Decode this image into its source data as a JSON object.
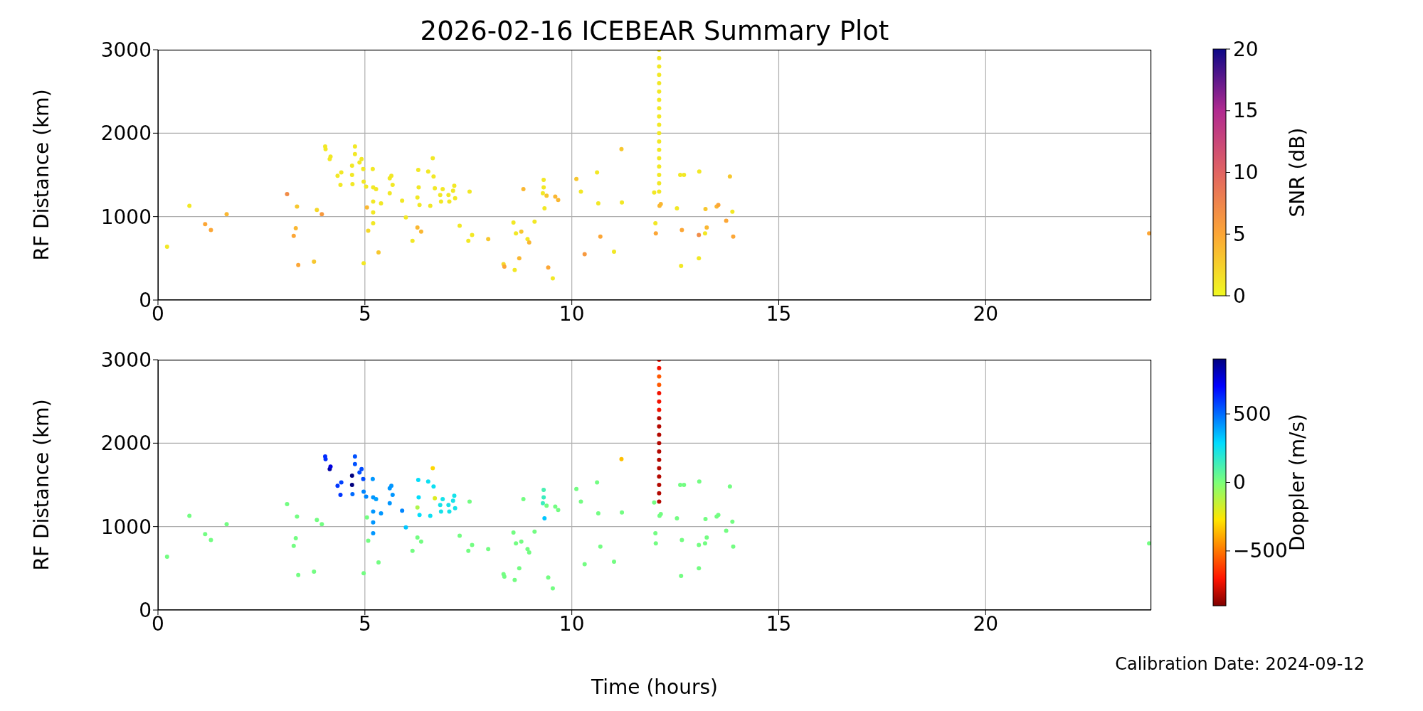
{
  "chart_data": [
    {
      "type": "scatter",
      "title": "2026-02-16 ICEBEAR Summary Plot",
      "ylabel": "RF Distance (km)",
      "clabel": "SNR (dB)",
      "clim": [
        0,
        20
      ],
      "cticks": [
        0,
        5,
        10,
        15,
        20
      ],
      "xlim": [
        0,
        24
      ],
      "xticks": [
        0,
        5,
        10,
        15,
        20
      ],
      "ylim": [
        0,
        3000
      ],
      "yticks": [
        0,
        1000,
        2000,
        3000
      ],
      "grid": true,
      "marker": "circle",
      "x": [
        0.22,
        0.76,
        1.14,
        1.28,
        1.66,
        3.12,
        3.36,
        3.33,
        3.28,
        3.39,
        3.77,
        3.84,
        3.96,
        4.04,
        4.05,
        4.15,
        4.17,
        4.34,
        4.41,
        4.43,
        4.69,
        4.69,
        4.7,
        4.76,
        4.76,
        4.87,
        4.92,
        4.96,
        4.97,
        5.03,
        5.05,
        5.08,
        4.97,
        5.19,
        5.2,
        5.2,
        5.2,
        5.2,
        5.27,
        5.33,
        5.39,
        5.6,
        5.64,
        5.67,
        5.6,
        5.9,
        5.99,
        6.15,
        6.27,
        6.36,
        6.29,
        6.27,
        6.3,
        6.32,
        6.53,
        6.58,
        6.64,
        6.66,
        6.69,
        6.82,
        6.84,
        6.88,
        7.02,
        7.04,
        7.13,
        7.16,
        7.18,
        7.29,
        7.53,
        7.5,
        7.59,
        7.98,
        8.35,
        8.37,
        8.59,
        8.62,
        8.65,
        8.73,
        8.78,
        8.83,
        8.93,
        8.97,
        9.1,
        9.32,
        9.32,
        9.3,
        9.34,
        9.39,
        9.43,
        9.54,
        9.6,
        9.67,
        10.11,
        10.22,
        10.31,
        10.61,
        10.64,
        10.69,
        11.02,
        11.2,
        11.21,
        12.11,
        12.11,
        12.11,
        12.11,
        12.11,
        12.11,
        12.11,
        12.11,
        12.11,
        12.11,
        12.11,
        12.11,
        12.11,
        12.11,
        12.11,
        12.11,
        12.11,
        12.11,
        11.99,
        12.02,
        12.03,
        12.12,
        12.15,
        12.54,
        12.62,
        12.71,
        12.64,
        12.66,
        13.08,
        13.07,
        13.07,
        13.22,
        13.26,
        13.23,
        13.5,
        13.54,
        13.73,
        13.82,
        13.88,
        13.9,
        23.95
      ],
      "values": [
        640,
        1130,
        910,
        840,
        1030,
        1270,
        1120,
        860,
        770,
        420,
        460,
        1080,
        1030,
        1840,
        1810,
        1690,
        1720,
        1490,
        1380,
        1530,
        1610,
        1500,
        1390,
        1840,
        1750,
        1650,
        1690,
        1570,
        1420,
        1360,
        1110,
        830,
        440,
        1570,
        1350,
        1180,
        1050,
        920,
        1330,
        570,
        1160,
        1460,
        1490,
        1380,
        1280,
        1190,
        990,
        710,
        870,
        820,
        1560,
        1230,
        1350,
        1140,
        1540,
        1130,
        1700,
        1480,
        1340,
        1260,
        1180,
        1330,
        1260,
        1180,
        1310,
        1370,
        1220,
        890,
        1300,
        710,
        780,
        730,
        430,
        400,
        930,
        360,
        800,
        500,
        820,
        1330,
        730,
        690,
        940,
        1440,
        1350,
        1280,
        1100,
        1250,
        390,
        260,
        1240,
        1200,
        1450,
        1300,
        550,
        1530,
        1160,
        760,
        580,
        1810,
        1170,
        1300,
        1400,
        1500,
        1600,
        1700,
        1800,
        1900,
        2000,
        2100,
        2200,
        2300,
        2400,
        2500,
        2600,
        2700,
        2800,
        2900,
        3000,
        1290,
        920,
        800,
        1130,
        1150,
        1100,
        1500,
        1500,
        410,
        840,
        1540,
        500,
        780,
        800,
        870,
        1090,
        1120,
        1140,
        950,
        1480,
        1060,
        760,
        800
      ],
      "cvalues": [
        1,
        1,
        5,
        5,
        4,
        7,
        3,
        4,
        5,
        5,
        3,
        2,
        6,
        1,
        1,
        1,
        1,
        1,
        1,
        1,
        1,
        1,
        1,
        1,
        1,
        1,
        1,
        1,
        1,
        1,
        4,
        2,
        1,
        1,
        1,
        1,
        1,
        1,
        1,
        3,
        1,
        1,
        1,
        1,
        1,
        1,
        1,
        1,
        4,
        4,
        1,
        1,
        1,
        1,
        1,
        1,
        1,
        1,
        1,
        1,
        1,
        1,
        1,
        1,
        1,
        1,
        1,
        1,
        1,
        1,
        1,
        3,
        2,
        5,
        1,
        1,
        1,
        4,
        3,
        4,
        1,
        4,
        1,
        1,
        1,
        1,
        1,
        3,
        5,
        1,
        4,
        4,
        3,
        1,
        6,
        1,
        1,
        5,
        1,
        3,
        1,
        1,
        1,
        1,
        1,
        1,
        1,
        1,
        1,
        1,
        1,
        1,
        1,
        1,
        1,
        1,
        1,
        1,
        1,
        1,
        1,
        5,
        4,
        4,
        1,
        1,
        1,
        1,
        5,
        1,
        1,
        7,
        1,
        4,
        3,
        4,
        5,
        5,
        3,
        1,
        5,
        5
      ]
    },
    {
      "type": "scatter",
      "xlabel": "Time (hours)",
      "ylabel": "RF Distance (km)",
      "clabel": "Doppler (m/s)",
      "clim": [
        -900,
        900
      ],
      "cticks": [
        -500,
        0,
        500
      ],
      "xlim": [
        0,
        24
      ],
      "xticks": [
        0,
        5,
        10,
        15,
        20
      ],
      "ylim": [
        0,
        3000
      ],
      "yticks": [
        0,
        1000,
        2000,
        3000
      ],
      "grid": true,
      "marker": "circle",
      "annotations": [
        "Calibration Date: 2024-09-12"
      ],
      "x": [
        0.22,
        0.76,
        1.14,
        1.28,
        1.66,
        3.12,
        3.36,
        3.33,
        3.28,
        3.39,
        3.77,
        3.84,
        3.96,
        4.04,
        4.05,
        4.15,
        4.17,
        4.34,
        4.41,
        4.43,
        4.69,
        4.69,
        4.7,
        4.76,
        4.76,
        4.87,
        4.92,
        4.96,
        4.97,
        5.03,
        5.05,
        5.08,
        4.97,
        5.19,
        5.2,
        5.2,
        5.2,
        5.2,
        5.27,
        5.33,
        5.39,
        5.6,
        5.64,
        5.67,
        5.6,
        5.9,
        5.99,
        6.15,
        6.27,
        6.36,
        6.29,
        6.27,
        6.3,
        6.32,
        6.53,
        6.58,
        6.64,
        6.66,
        6.69,
        6.82,
        6.84,
        6.88,
        7.02,
        7.04,
        7.13,
        7.16,
        7.18,
        7.29,
        7.53,
        7.5,
        7.59,
        7.98,
        8.35,
        8.37,
        8.59,
        8.62,
        8.65,
        8.73,
        8.78,
        8.83,
        8.93,
        8.97,
        9.1,
        9.32,
        9.32,
        9.3,
        9.34,
        9.39,
        9.43,
        9.54,
        9.6,
        9.67,
        10.11,
        10.22,
        10.31,
        10.61,
        10.64,
        10.69,
        11.02,
        11.2,
        11.21,
        12.11,
        12.11,
        12.11,
        12.11,
        12.11,
        12.11,
        12.11,
        12.11,
        12.11,
        12.11,
        12.11,
        12.11,
        12.11,
        12.11,
        12.11,
        12.11,
        12.11,
        12.11,
        11.99,
        12.02,
        12.03,
        12.12,
        12.15,
        12.54,
        12.62,
        12.71,
        12.64,
        12.66,
        13.08,
        13.07,
        13.07,
        13.22,
        13.26,
        13.23,
        13.5,
        13.54,
        13.73,
        13.82,
        13.88,
        13.9,
        23.95
      ],
      "values": [
        640,
        1130,
        910,
        840,
        1030,
        1270,
        1120,
        860,
        770,
        420,
        460,
        1080,
        1030,
        1840,
        1810,
        1690,
        1720,
        1490,
        1380,
        1530,
        1610,
        1500,
        1390,
        1840,
        1750,
        1650,
        1690,
        1570,
        1420,
        1360,
        1110,
        830,
        440,
        1570,
        1350,
        1180,
        1050,
        920,
        1330,
        570,
        1160,
        1460,
        1490,
        1380,
        1280,
        1190,
        990,
        710,
        870,
        820,
        1560,
        1230,
        1350,
        1140,
        1540,
        1130,
        1700,
        1480,
        1340,
        1260,
        1180,
        1330,
        1260,
        1180,
        1310,
        1370,
        1220,
        890,
        1300,
        710,
        780,
        730,
        430,
        400,
        930,
        360,
        800,
        500,
        820,
        1330,
        730,
        690,
        940,
        1440,
        1350,
        1280,
        1100,
        1250,
        390,
        260,
        1240,
        1200,
        1450,
        1300,
        550,
        1530,
        1160,
        760,
        580,
        1810,
        1170,
        1300,
        1400,
        1500,
        1600,
        1700,
        1800,
        1900,
        2000,
        2100,
        2200,
        2300,
        2400,
        2500,
        2600,
        2700,
        2800,
        2900,
        3000,
        1290,
        920,
        800,
        1130,
        1150,
        1100,
        1500,
        1500,
        410,
        840,
        1540,
        500,
        780,
        800,
        870,
        1090,
        1120,
        1140,
        950,
        1480,
        1060,
        760,
        800
      ],
      "cvalues": [
        20,
        20,
        20,
        20,
        20,
        20,
        20,
        20,
        20,
        20,
        20,
        20,
        20,
        620,
        620,
        850,
        750,
        600,
        600,
        580,
        900,
        900,
        500,
        550,
        550,
        560,
        560,
        560,
        450,
        450,
        20,
        20,
        20,
        420,
        420,
        420,
        420,
        420,
        400,
        20,
        420,
        420,
        420,
        420,
        420,
        450,
        330,
        20,
        20,
        20,
        280,
        -100,
        280,
        280,
        260,
        260,
        -300,
        260,
        -200,
        240,
        240,
        240,
        240,
        240,
        240,
        240,
        240,
        20,
        20,
        20,
        20,
        20,
        20,
        20,
        20,
        20,
        20,
        20,
        20,
        20,
        20,
        20,
        20,
        120,
        150,
        150,
        330,
        20,
        20,
        20,
        20,
        20,
        20,
        20,
        20,
        20,
        20,
        20,
        20,
        -350,
        20,
        -820,
        -820,
        -820,
        -820,
        -820,
        -820,
        -820,
        -820,
        -820,
        -820,
        -820,
        -720,
        -720,
        -720,
        -560,
        -560,
        -720,
        -720,
        20,
        20,
        20,
        20,
        20,
        20,
        20,
        20,
        20,
        20,
        20,
        20,
        20,
        20,
        20,
        20,
        20,
        20,
        20,
        20,
        20,
        20,
        20
      ]
    }
  ]
}
